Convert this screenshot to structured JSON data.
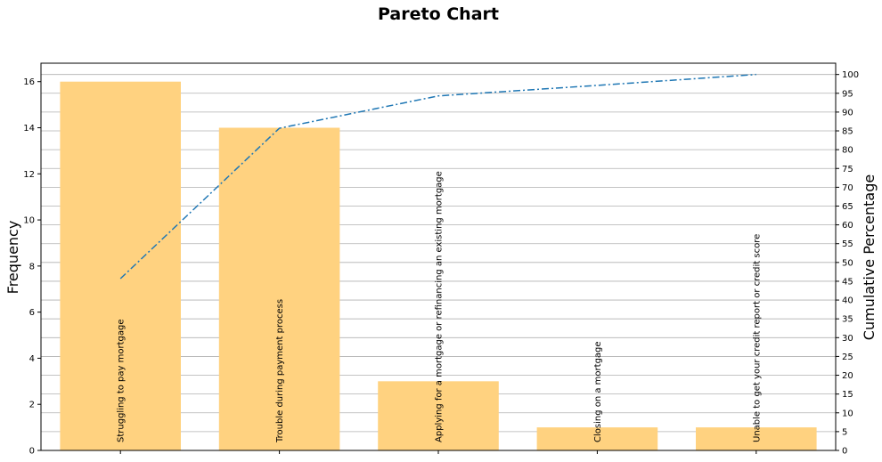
{
  "chart_data": {
    "type": "bar",
    "title": "Pareto Chart",
    "categories": [
      "Struggling to pay mortgage",
      "Trouble during payment process",
      "Applying for a mortgage or refinancing an existing mortgage",
      "Closing on a mortgage",
      "Unable to get your credit report or credit score"
    ],
    "values": [
      16,
      14,
      3,
      1,
      1
    ],
    "cumulative_percentage": [
      45.7,
      85.7,
      94.3,
      97.1,
      100
    ],
    "ylabel": "Frequency",
    "ylim": [
      0,
      16.8
    ],
    "yticks": [
      "0",
      "2",
      "4",
      "6",
      "8",
      "10",
      "12",
      "14",
      "16"
    ],
    "y2label": "Cumulative Percentage",
    "y2lim": [
      0,
      103
    ],
    "y2ticks": [
      "0",
      "5",
      "10",
      "15",
      "20",
      "25",
      "30",
      "35",
      "40",
      "45",
      "50",
      "55",
      "60",
      "65",
      "70",
      "75",
      "80",
      "85",
      "90",
      "95",
      "100"
    ],
    "grid": "horizontal on secondary axis",
    "bar_color": "#ffd280",
    "line_color": "#1f77b4",
    "line_style": "dash-dot"
  }
}
